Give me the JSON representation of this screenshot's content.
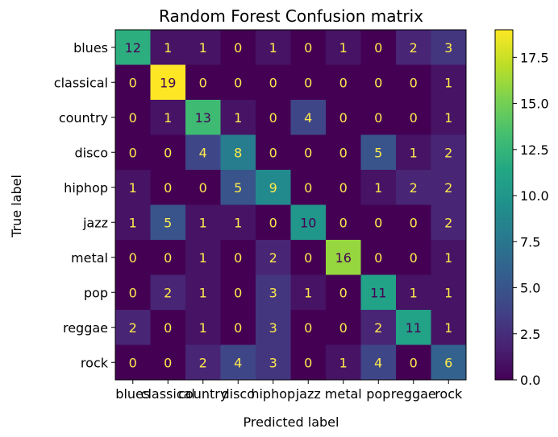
{
  "chart_data": {
    "type": "heatmap",
    "title": "Random Forest Confusion matrix",
    "xlabel": "Predicted label",
    "ylabel": "True label",
    "x_categories": [
      "blues",
      "classical",
      "country",
      "disco",
      "hiphop",
      "jazz",
      "metal",
      "pop",
      "reggae",
      "rock"
    ],
    "y_categories": [
      "blues",
      "classical",
      "country",
      "disco",
      "hiphop",
      "jazz",
      "metal",
      "pop",
      "reggae",
      "rock"
    ],
    "values": [
      [
        12,
        1,
        1,
        0,
        1,
        0,
        1,
        0,
        2,
        3
      ],
      [
        0,
        19,
        0,
        0,
        0,
        0,
        0,
        0,
        0,
        1
      ],
      [
        0,
        1,
        13,
        1,
        0,
        4,
        0,
        0,
        0,
        1
      ],
      [
        0,
        0,
        4,
        8,
        0,
        0,
        0,
        5,
        1,
        2
      ],
      [
        1,
        0,
        0,
        5,
        9,
        0,
        0,
        1,
        2,
        2
      ],
      [
        1,
        5,
        1,
        1,
        0,
        10,
        0,
        0,
        0,
        2
      ],
      [
        0,
        0,
        1,
        0,
        2,
        0,
        16,
        0,
        0,
        1
      ],
      [
        0,
        2,
        1,
        0,
        3,
        1,
        0,
        11,
        1,
        1
      ],
      [
        2,
        0,
        1,
        0,
        3,
        0,
        0,
        2,
        11,
        1
      ],
      [
        0,
        0,
        2,
        4,
        3,
        0,
        1,
        4,
        0,
        6
      ]
    ],
    "colormap": "viridis",
    "vmin": 0,
    "vmax": 19,
    "colorbar": {
      "ticks": [
        0.0,
        2.5,
        5.0,
        7.5,
        10.0,
        12.5,
        15.0,
        17.5
      ],
      "tick_labels": [
        "0.0",
        "2.5",
        "5.0",
        "7.5",
        "10.0",
        "12.5",
        "15.0",
        "17.5"
      ]
    },
    "text_color_dark_cells": "#ffe94d",
    "text_color_light_cells": "#440154"
  }
}
